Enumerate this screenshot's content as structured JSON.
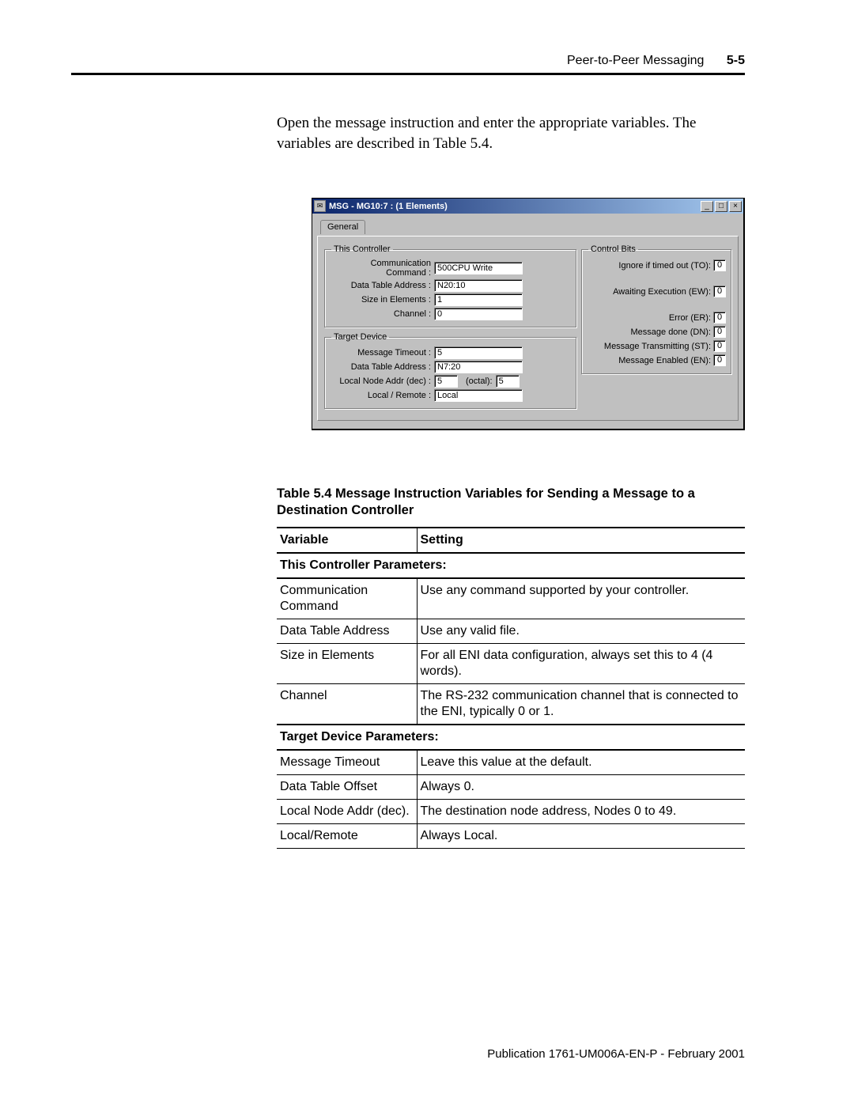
{
  "header": {
    "section": "Peer-to-Peer Messaging",
    "pagenum": "5-5"
  },
  "intro": "Open the message instruction and enter the appropriate variables. The variables are described in Table 5.4.",
  "dialog": {
    "title": "MSG - MG10:7 : (1 Elements)",
    "tab": "General",
    "this_controller": {
      "legend": "This Controller",
      "comm_cmd_label": "Communication Command :",
      "comm_cmd": "500CPU Write",
      "dta_label": "Data Table Address :",
      "dta": "N20:10",
      "size_label": "Size in Elements :",
      "size": "1",
      "channel_label": "Channel :",
      "channel": "0"
    },
    "target_device": {
      "legend": "Target Device",
      "timeout_label": "Message Timeout :",
      "timeout": "5",
      "dta_label": "Data Table Address :",
      "dta": "N7:20",
      "node_label": "Local Node Addr (dec) :",
      "node_dec": "5",
      "octal_label": "(octal):",
      "node_oct": "5",
      "locrem_label": "Local / Remote :",
      "locrem": "Local"
    },
    "control_bits": {
      "legend": "Control Bits",
      "to_label": "Ignore if timed out (TO):",
      "to": "0",
      "ew_label": "Awaiting Execution (EW):",
      "ew": "0",
      "er_label": "Error (ER):",
      "er": "0",
      "dn_label": "Message done (DN):",
      "dn": "0",
      "st_label": "Message Transmitting (ST):",
      "st": "0",
      "en_label": "Message Enabled (EN):",
      "en": "0"
    }
  },
  "table": {
    "caption": "Table 5.4 Message Instruction Variables for Sending a Message to a Destination Controller",
    "head_var": "Variable",
    "head_setting": "Setting",
    "section1": "This Controller Parameters:",
    "rows1": [
      {
        "v": "Communication Command",
        "s": "Use any command supported by your controller."
      },
      {
        "v": "Data Table Address",
        "s": "Use any valid file."
      },
      {
        "v": "Size in Elements",
        "s": "For all ENI data configuration, always set this to 4 (4 words)."
      },
      {
        "v": "Channel",
        "s": "The RS-232 communication channel that is connected to the ENI, typically 0 or 1."
      }
    ],
    "section2": "Target Device Parameters:",
    "rows2": [
      {
        "v": "Message Timeout",
        "s": "Leave this value at the default."
      },
      {
        "v": "Data Table Offset",
        "s": "Always 0."
      },
      {
        "v": "Local Node Addr (dec).",
        "s": "The destination node address, Nodes 0 to 49."
      },
      {
        "v": "Local/Remote",
        "s": "Always Local."
      }
    ]
  },
  "footer": "Publication 1761-UM006A-EN-P - February 2001"
}
